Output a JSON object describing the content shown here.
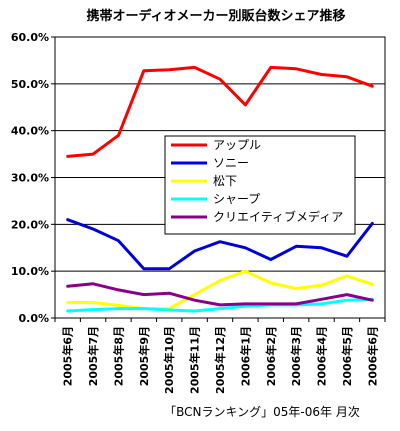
{
  "chart_data": {
    "type": "line",
    "title": "携帯オーディオメーカー別販台数シェア推移",
    "source": "「BCNランキング」05年-06年 月次",
    "categories": [
      "2005年6月",
      "2005年7月",
      "2005年8月",
      "2005年9月",
      "2005年10月",
      "2005年11月",
      "2005年12月",
      "2006年1月",
      "2006年2月",
      "2006年3月",
      "2006年4月",
      "2006年5月",
      "2006年6月"
    ],
    "ylim": [
      0,
      60
    ],
    "yticks": [
      "0.0%",
      "10.0%",
      "20.0%",
      "30.0%",
      "40.0%",
      "50.0%",
      "60.0%"
    ],
    "grid": true,
    "legend_position": "center-right",
    "series": [
      {
        "name": "アップル",
        "color": "#ff0000",
        "values": [
          34.5,
          35.0,
          39.0,
          52.8,
          53.0,
          53.5,
          51.0,
          45.5,
          53.5,
          53.2,
          52.0,
          51.5,
          49.5
        ]
      },
      {
        "name": "ソニー",
        "color": "#0000dd",
        "values": [
          21.0,
          19.0,
          16.5,
          10.5,
          10.5,
          14.3,
          16.3,
          15.0,
          12.5,
          15.3,
          15.0,
          13.2,
          20.2
        ]
      },
      {
        "name": "松下",
        "color": "#ffff00",
        "values": [
          3.3,
          3.3,
          2.7,
          2.0,
          2.0,
          5.0,
          8.0,
          10.0,
          7.5,
          6.3,
          7.0,
          9.0,
          7.2
        ]
      },
      {
        "name": "シャープ",
        "color": "#00ffff",
        "values": [
          1.5,
          1.8,
          2.0,
          2.0,
          1.7,
          1.5,
          2.0,
          2.5,
          2.8,
          2.8,
          3.0,
          3.8,
          4.0
        ]
      },
      {
        "name": "クリエイティブメディア",
        "color": "#8b008b",
        "values": [
          6.8,
          7.3,
          6.0,
          5.0,
          5.3,
          3.8,
          2.8,
          3.0,
          3.0,
          3.0,
          4.0,
          5.0,
          3.8
        ]
      }
    ]
  }
}
